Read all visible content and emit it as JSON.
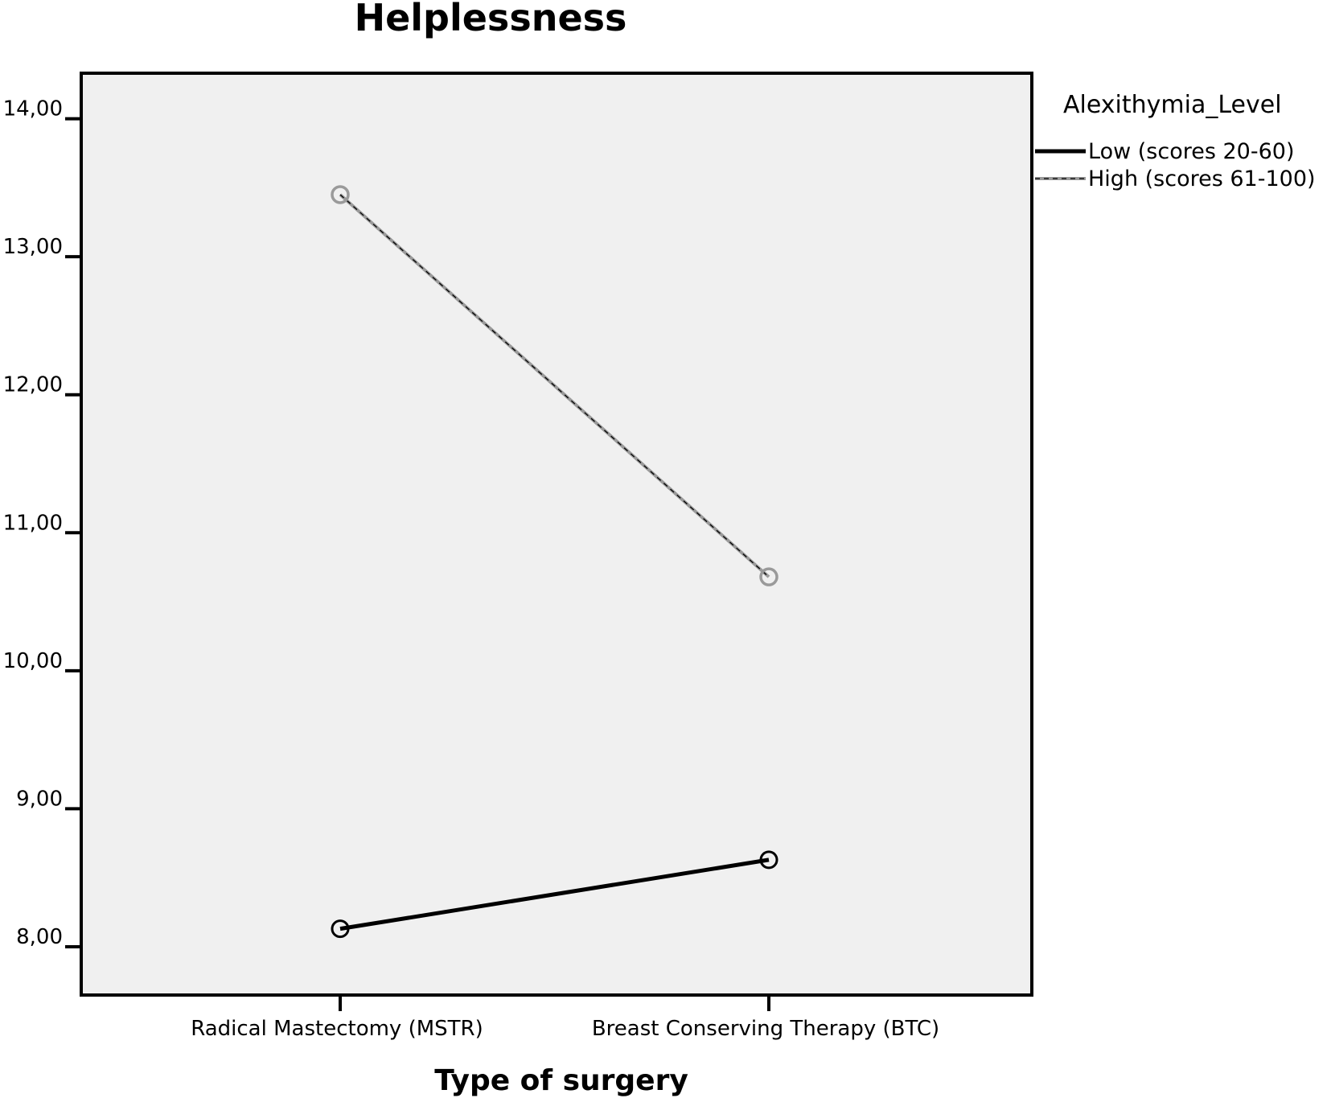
{
  "chart_data": {
    "type": "line",
    "title": "Helplessness",
    "xlabel": "Type of surgery",
    "ylabel": "",
    "categories": [
      "Radical Mastectomy (MSTR)",
      "Breast Conserving Therapy (BTC)"
    ],
    "y_ticks": [
      "8,00",
      "9,00",
      "10,00",
      "11,00",
      "12,00",
      "13,00",
      "14,00"
    ],
    "ylim": [
      7.65,
      14.33
    ],
    "grid": false,
    "legend": {
      "title": "Alexithymia_Level",
      "placement": "right"
    },
    "series": [
      {
        "name": "Low (scores 20-60)",
        "values": [
          8.13,
          8.63
        ],
        "color": "#000000",
        "style": "solid"
      },
      {
        "name": "High (scores 61-100)",
        "values": [
          13.45,
          10.68
        ],
        "color": "#9a9a9a",
        "style": "dashed"
      }
    ],
    "plot_background": "#f0f0f0"
  }
}
